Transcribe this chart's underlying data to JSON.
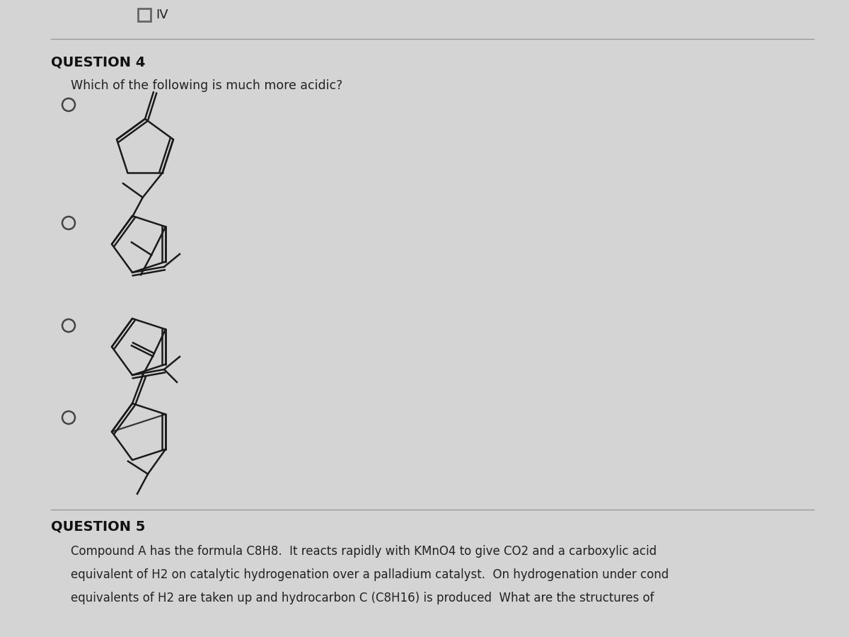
{
  "background_color": "#d4d4d4",
  "title_iv": "IV",
  "question4_title": "QUESTION 4",
  "question4_text": "Which of the following is much more acidic?",
  "question5_title": "QUESTION 5",
  "question5_line1": "Compound A has the formula C8H8.  It reacts rapidly with KMnO4 to give CO2 and a carboxylic acid",
  "question5_line2": "equivalent of H2 on catalytic hydrogenation over a palladium catalyst.  On hydrogenation under cond",
  "question5_line3": "equivalents of H2 are taken up and hydrocarbon C (C8H16) is produced  What are the structures of",
  "text_color": "#222222",
  "bold_color": "#111111",
  "line_color": "#999999",
  "radio_color": "#444444",
  "checkbox_color": "#666666",
  "struct_color": "#1a1a1a"
}
